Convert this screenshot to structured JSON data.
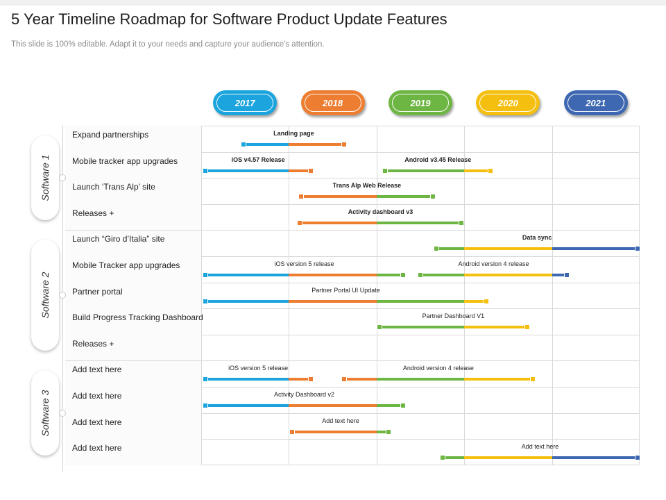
{
  "title": "5 Year Timeline Roadmap for Software Product Update Features",
  "subtitle": "This slide is 100% editable. Adapt it to your needs and capture your audience's attention.",
  "colors": {
    "c2017": "#1ba4dd",
    "c2018": "#ec7d31",
    "c2019": "#6eb643",
    "c2020": "#f5bf10",
    "c2021": "#3e68b1"
  },
  "years": [
    "2017",
    "2018",
    "2019",
    "2020",
    "2021"
  ],
  "groups": [
    {
      "label": "Software 1",
      "rows": [
        0,
        3
      ]
    },
    {
      "label": "Software 2",
      "rows": [
        4,
        8
      ]
    },
    {
      "label": "Software 3",
      "rows": [
        9,
        12
      ]
    }
  ],
  "rows": [
    "Expand partnerships",
    "Mobile tracker app upgrades",
    "Launch ‘Trans Alp’ site",
    "Releases +",
    "Launch “Giro d’Italia” site",
    "Mobile Tracker app upgrades",
    "Partner portal",
    "Build Progress Tracking Dashboard",
    "Releases +",
    "Add text here",
    "Add text here",
    "Add text here",
    "Add text here"
  ],
  "bars": [
    {
      "row": 0,
      "label": "Landing page",
      "bold": true,
      "start": 0.48,
      "end": 1.63
    },
    {
      "row": 1,
      "label": "iOS v4.57 Release",
      "bold": true,
      "start": 0.05,
      "end": 1.25
    },
    {
      "row": 1,
      "label": "Android v3.45 Release",
      "bold": true,
      "start": 2.1,
      "end": 3.3
    },
    {
      "row": 2,
      "label": "Trans Alp Web Release",
      "bold": true,
      "start": 1.14,
      "end": 2.64
    },
    {
      "row": 3,
      "label": "Activity  dashboard v3",
      "bold": true,
      "start": 1.12,
      "end": 2.97
    },
    {
      "row": 4,
      "label": "Data sync",
      "bold": true,
      "start": 2.68,
      "end": 4.98
    },
    {
      "row": 5,
      "label": "iOS version 5 release",
      "bold": false,
      "start": 0.05,
      "end": 2.3
    },
    {
      "row": 5,
      "label": "Android version 4 release",
      "bold": false,
      "start": 2.5,
      "end": 4.17
    },
    {
      "row": 6,
      "label": "Partner Portal UI Update",
      "bold": false,
      "start": 0.05,
      "end": 3.25
    },
    {
      "row": 7,
      "label": "Partner Dashboard V1",
      "bold": false,
      "start": 2.03,
      "end": 3.72
    },
    {
      "row": 9,
      "label": "iOS version 5 release",
      "bold": false,
      "start": 0.05,
      "end": 1.25
    },
    {
      "row": 9,
      "label": "Android version 4 release",
      "bold": false,
      "start": 1.63,
      "end": 3.78
    },
    {
      "row": 10,
      "label": "Activity Dashboard v2",
      "bold": false,
      "start": 0.05,
      "end": 2.3
    },
    {
      "row": 11,
      "label": "Add text here",
      "bold": false,
      "start": 1.04,
      "end": 2.14
    },
    {
      "row": 12,
      "label": "Add text here",
      "bold": false,
      "start": 2.75,
      "end": 4.98
    }
  ]
}
